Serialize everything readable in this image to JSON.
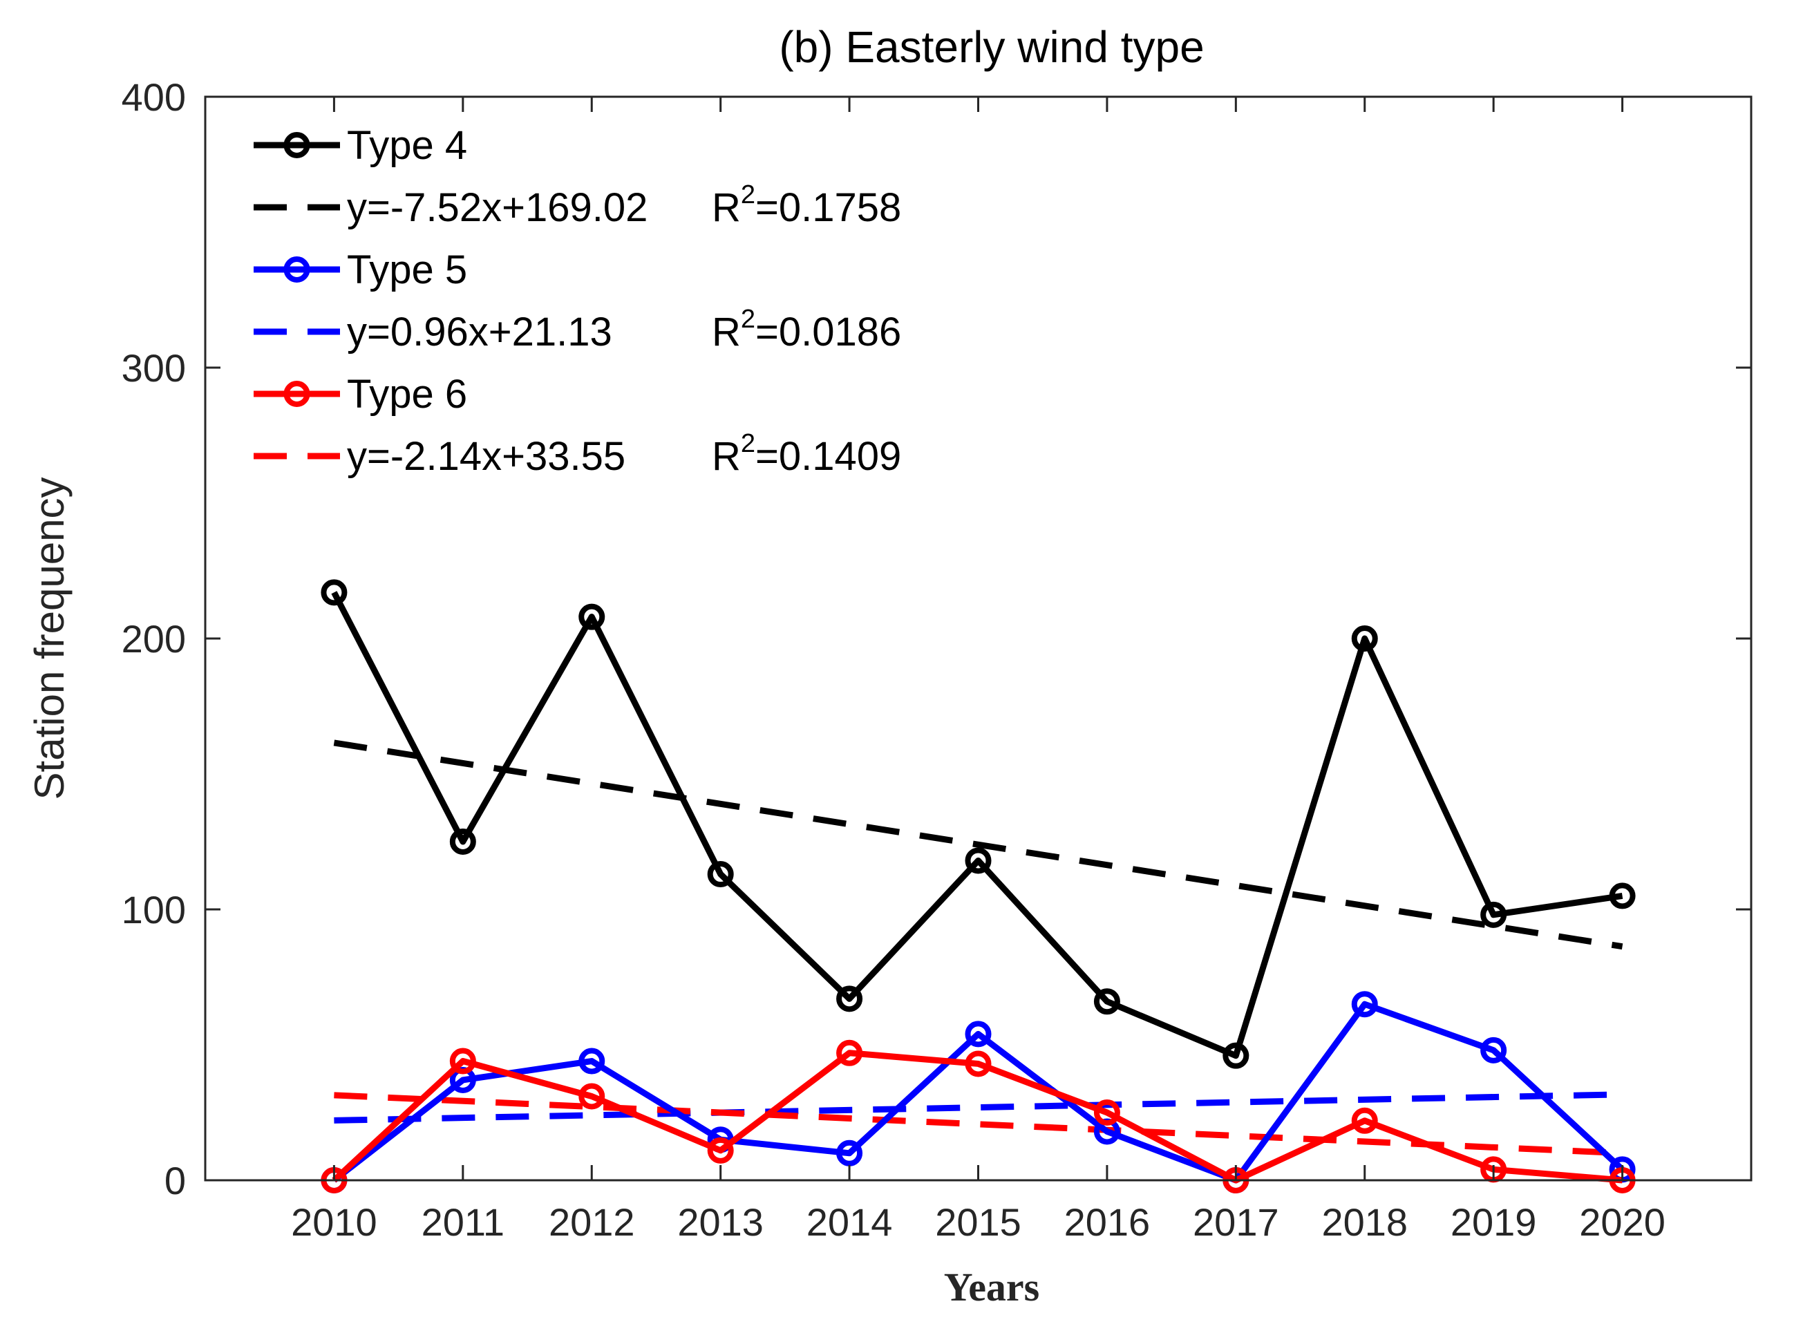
{
  "chart_data": {
    "type": "line",
    "title": "(b)  Easterly wind type",
    "xlabel": "Years",
    "ylabel": "Station  frequency",
    "x": [
      2010,
      2011,
      2012,
      2013,
      2014,
      2015,
      2016,
      2017,
      2018,
      2019,
      2020
    ],
    "xticks": [
      "2010",
      "2011",
      "2012",
      "2013",
      "2014",
      "2015",
      "2016",
      "2017",
      "2018",
      "2019",
      "2020"
    ],
    "xlim": [
      2009,
      2021
    ],
    "ylim": [
      0,
      400
    ],
    "yticks": [
      "0",
      "100",
      "200",
      "300",
      "400"
    ],
    "grid": false,
    "legend_position": "top-left",
    "series": [
      {
        "name": "Type 4",
        "color": "#000000",
        "values": [
          217,
          125,
          208,
          113,
          67,
          118,
          66,
          46,
          200,
          98,
          105
        ],
        "trend": {
          "label": "y=-7.52x+169.02",
          "r2_prefix": "R",
          "r2_exp": "2",
          "r2_value": "=0.1758",
          "slope": -7.52,
          "intercept": 169.02
        }
      },
      {
        "name": "Type 5",
        "color": "#0000ff",
        "values": [
          0,
          37,
          44,
          15,
          10,
          54,
          18,
          0,
          65,
          48,
          4
        ],
        "trend": {
          "label": "y=0.96x+21.13",
          "r2_prefix": "R",
          "r2_exp": "2",
          "r2_value": "=0.0186",
          "slope": 0.96,
          "intercept": 21.13
        }
      },
      {
        "name": "Type 6",
        "color": "#ff0000",
        "values": [
          0,
          44,
          31,
          11,
          47,
          43,
          25,
          0,
          22,
          4,
          0
        ],
        "trend": {
          "label": "y=-2.14x+33.55",
          "r2_prefix": "R",
          "r2_exp": "2",
          "r2_value": "=0.1409",
          "slope": -2.14,
          "intercept": 33.55
        }
      }
    ]
  }
}
